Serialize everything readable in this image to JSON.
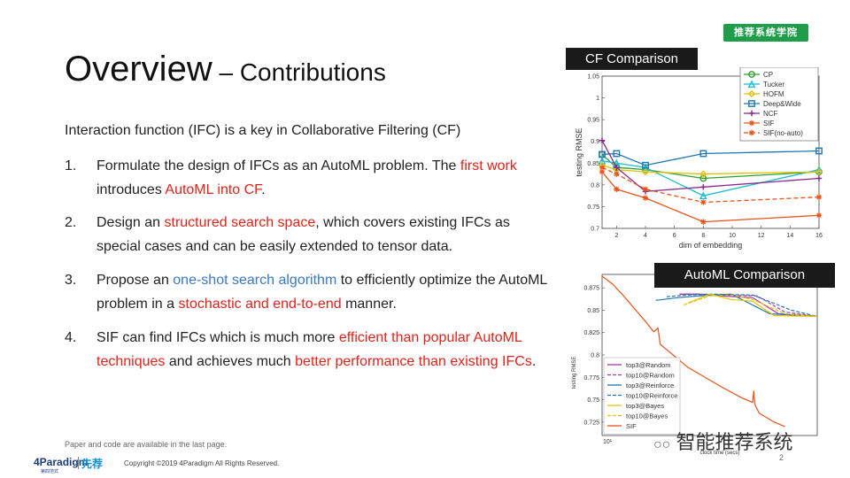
{
  "badge": "推荐系统学院",
  "title": {
    "main": "Overview",
    "sub": " – Contributions"
  },
  "intro": "Interaction function (IFC) is a key in Collaborative Filtering (CF)",
  "items": [
    {
      "num": "1.",
      "segments": [
        {
          "t": "Formulate the design of IFCs as an AutoML problem. The ",
          "c": ""
        },
        {
          "t": "first work",
          "c": "red"
        },
        {
          "t": " introduces ",
          "c": ""
        },
        {
          "t": "AutoML into CF",
          "c": "red"
        },
        {
          "t": ".",
          "c": ""
        }
      ]
    },
    {
      "num": "2.",
      "segments": [
        {
          "t": "Design an ",
          "c": ""
        },
        {
          "t": "structured search space",
          "c": "red"
        },
        {
          "t": ", which covers existing IFCs as special cases and can be easily extended to tensor data.",
          "c": ""
        }
      ]
    },
    {
      "num": "3.",
      "segments": [
        {
          "t": "Propose an ",
          "c": ""
        },
        {
          "t": "one-shot search algorithm",
          "c": "blue"
        },
        {
          "t": " to efficiently optimize the AutoML problem in a ",
          "c": ""
        },
        {
          "t": "stochastic and end-to-end",
          "c": "red"
        },
        {
          "t": " manner.",
          "c": ""
        }
      ]
    },
    {
      "num": "4.",
      "segments": [
        {
          "t": "SIF can find IFCs which is much more ",
          "c": ""
        },
        {
          "t": "efficient than popular AutoML techniques",
          "c": "red"
        },
        {
          "t": " and achieves much ",
          "c": ""
        },
        {
          "t": "better performance than existing IFCs",
          "c": "red"
        },
        {
          "t": ".",
          "c": ""
        }
      ]
    }
  ],
  "footnote": "Paper and code are available in the last page.",
  "copyright": "Copyright ©2019 4Paradigm All Rights Reserved.",
  "logos": {
    "paradigm": "4Paradigm",
    "paradigm_sub": "第四范式",
    "xianjian": "先荐"
  },
  "wechat": "智能推荐系统",
  "page_number": "2",
  "chart_data": [
    {
      "type": "line",
      "label": "CF Comparison",
      "xlabel": "dim of embedding",
      "ylabel": "testing RMSE",
      "xlim": [
        1,
        16
      ],
      "ylim": [
        0.7,
        1.05
      ],
      "xticks": [
        2,
        4,
        6,
        8,
        10,
        12,
        14,
        16
      ],
      "yticks": [
        0.7,
        0.75,
        0.8,
        0.85,
        0.9,
        0.95,
        1,
        1.05
      ],
      "x": [
        1,
        2,
        4,
        8,
        16
      ],
      "legend_position": "top-right",
      "series": [
        {
          "name": "CP",
          "color": "#2ca02c",
          "marker": "circle",
          "dash": "",
          "values": [
            0.87,
            0.84,
            0.835,
            0.815,
            0.83
          ]
        },
        {
          "name": "Tucker",
          "color": "#17becf",
          "marker": "triangle",
          "dash": "",
          "values": [
            0.855,
            0.85,
            0.84,
            0.775,
            0.835
          ]
        },
        {
          "name": "HOFM",
          "color": "#e0c000",
          "marker": "diamond",
          "dash": "",
          "values": [
            0.845,
            0.835,
            0.83,
            0.825,
            0.83
          ]
        },
        {
          "name": "Deep&Wide",
          "color": "#1f77b4",
          "marker": "square",
          "dash": "",
          "values": [
            0.87,
            0.872,
            0.845,
            0.872,
            0.878
          ]
        },
        {
          "name": "NCF",
          "color": "#8b2a8b",
          "marker": "plus",
          "dash": "",
          "values": [
            0.902,
            0.84,
            0.785,
            0.795,
            0.815
          ]
        },
        {
          "name": "SIF",
          "color": "#e8541a",
          "marker": "star",
          "dash": "",
          "values": [
            0.83,
            0.79,
            0.77,
            0.715,
            0.73
          ]
        },
        {
          "name": "SIF(no-auto)",
          "color": "#e8541a",
          "marker": "star",
          "dash": "5,3",
          "values": [
            0.84,
            0.825,
            0.79,
            0.76,
            0.772
          ]
        }
      ]
    },
    {
      "type": "line",
      "label": "AutoML Comparison",
      "xlabel": "clock time (secs)",
      "ylabel": "testing RMSE",
      "ylim": [
        0.71,
        0.89
      ],
      "yticks": [
        0.725,
        0.75,
        0.775,
        0.8,
        0.825,
        0.85,
        0.875
      ],
      "xtick_label": "10¹",
      "legend_position": "bottom-left",
      "series": [
        {
          "name": "top3@Random",
          "color": "#a33aa3",
          "dash": "",
          "x": [
            0.36,
            0.45,
            0.55,
            0.7,
            0.82,
            1.0
          ],
          "values": [
            0.868,
            0.868,
            0.866,
            0.864,
            0.846,
            0.843
          ]
        },
        {
          "name": "top10@Random",
          "color": "#a33aa3",
          "dash": "4,2",
          "x": [
            0.36,
            0.45,
            0.55,
            0.72,
            0.85,
            1.0
          ],
          "values": [
            0.868,
            0.868,
            0.867,
            0.866,
            0.848,
            0.843
          ]
        },
        {
          "name": "top3@Reinforce",
          "color": "#1f77b4",
          "dash": "",
          "x": [
            0.25,
            0.35,
            0.45,
            0.6,
            0.78,
            1.0
          ],
          "values": [
            0.861,
            0.864,
            0.866,
            0.868,
            0.846,
            0.843
          ]
        },
        {
          "name": "top10@Reinforce",
          "color": "#1f77b4",
          "dash": "4,2",
          "x": [
            0.3,
            0.4,
            0.5,
            0.7,
            0.88,
            1.0
          ],
          "values": [
            0.865,
            0.867,
            0.868,
            0.867,
            0.85,
            0.843
          ]
        },
        {
          "name": "top3@Bayes",
          "color": "#e6c300",
          "dash": "",
          "x": [
            0.4,
            0.5,
            0.6,
            0.7,
            0.8,
            1.0
          ],
          "values": [
            0.858,
            0.868,
            0.862,
            0.86,
            0.844,
            0.843
          ]
        },
        {
          "name": "top10@Bayes",
          "color": "#e6c300",
          "dash": "4,2",
          "x": [
            0.38,
            0.5,
            0.6,
            0.7,
            0.85,
            1.0
          ],
          "values": [
            0.856,
            0.866,
            0.867,
            0.862,
            0.846,
            0.843
          ]
        },
        {
          "name": "SIF",
          "color": "#e8541a",
          "dash": "",
          "x": [
            0.0,
            0.05,
            0.1,
            0.15,
            0.2,
            0.24,
            0.26,
            0.27,
            0.29,
            0.4,
            0.55,
            0.65,
            0.7,
            0.705,
            0.71,
            0.73,
            0.8,
            0.85
          ],
          "values": [
            0.888,
            0.879,
            0.866,
            0.852,
            0.838,
            0.826,
            0.83,
            0.812,
            0.808,
            0.786,
            0.765,
            0.752,
            0.747,
            0.76,
            0.745,
            0.735,
            0.725,
            0.72
          ]
        }
      ]
    }
  ]
}
